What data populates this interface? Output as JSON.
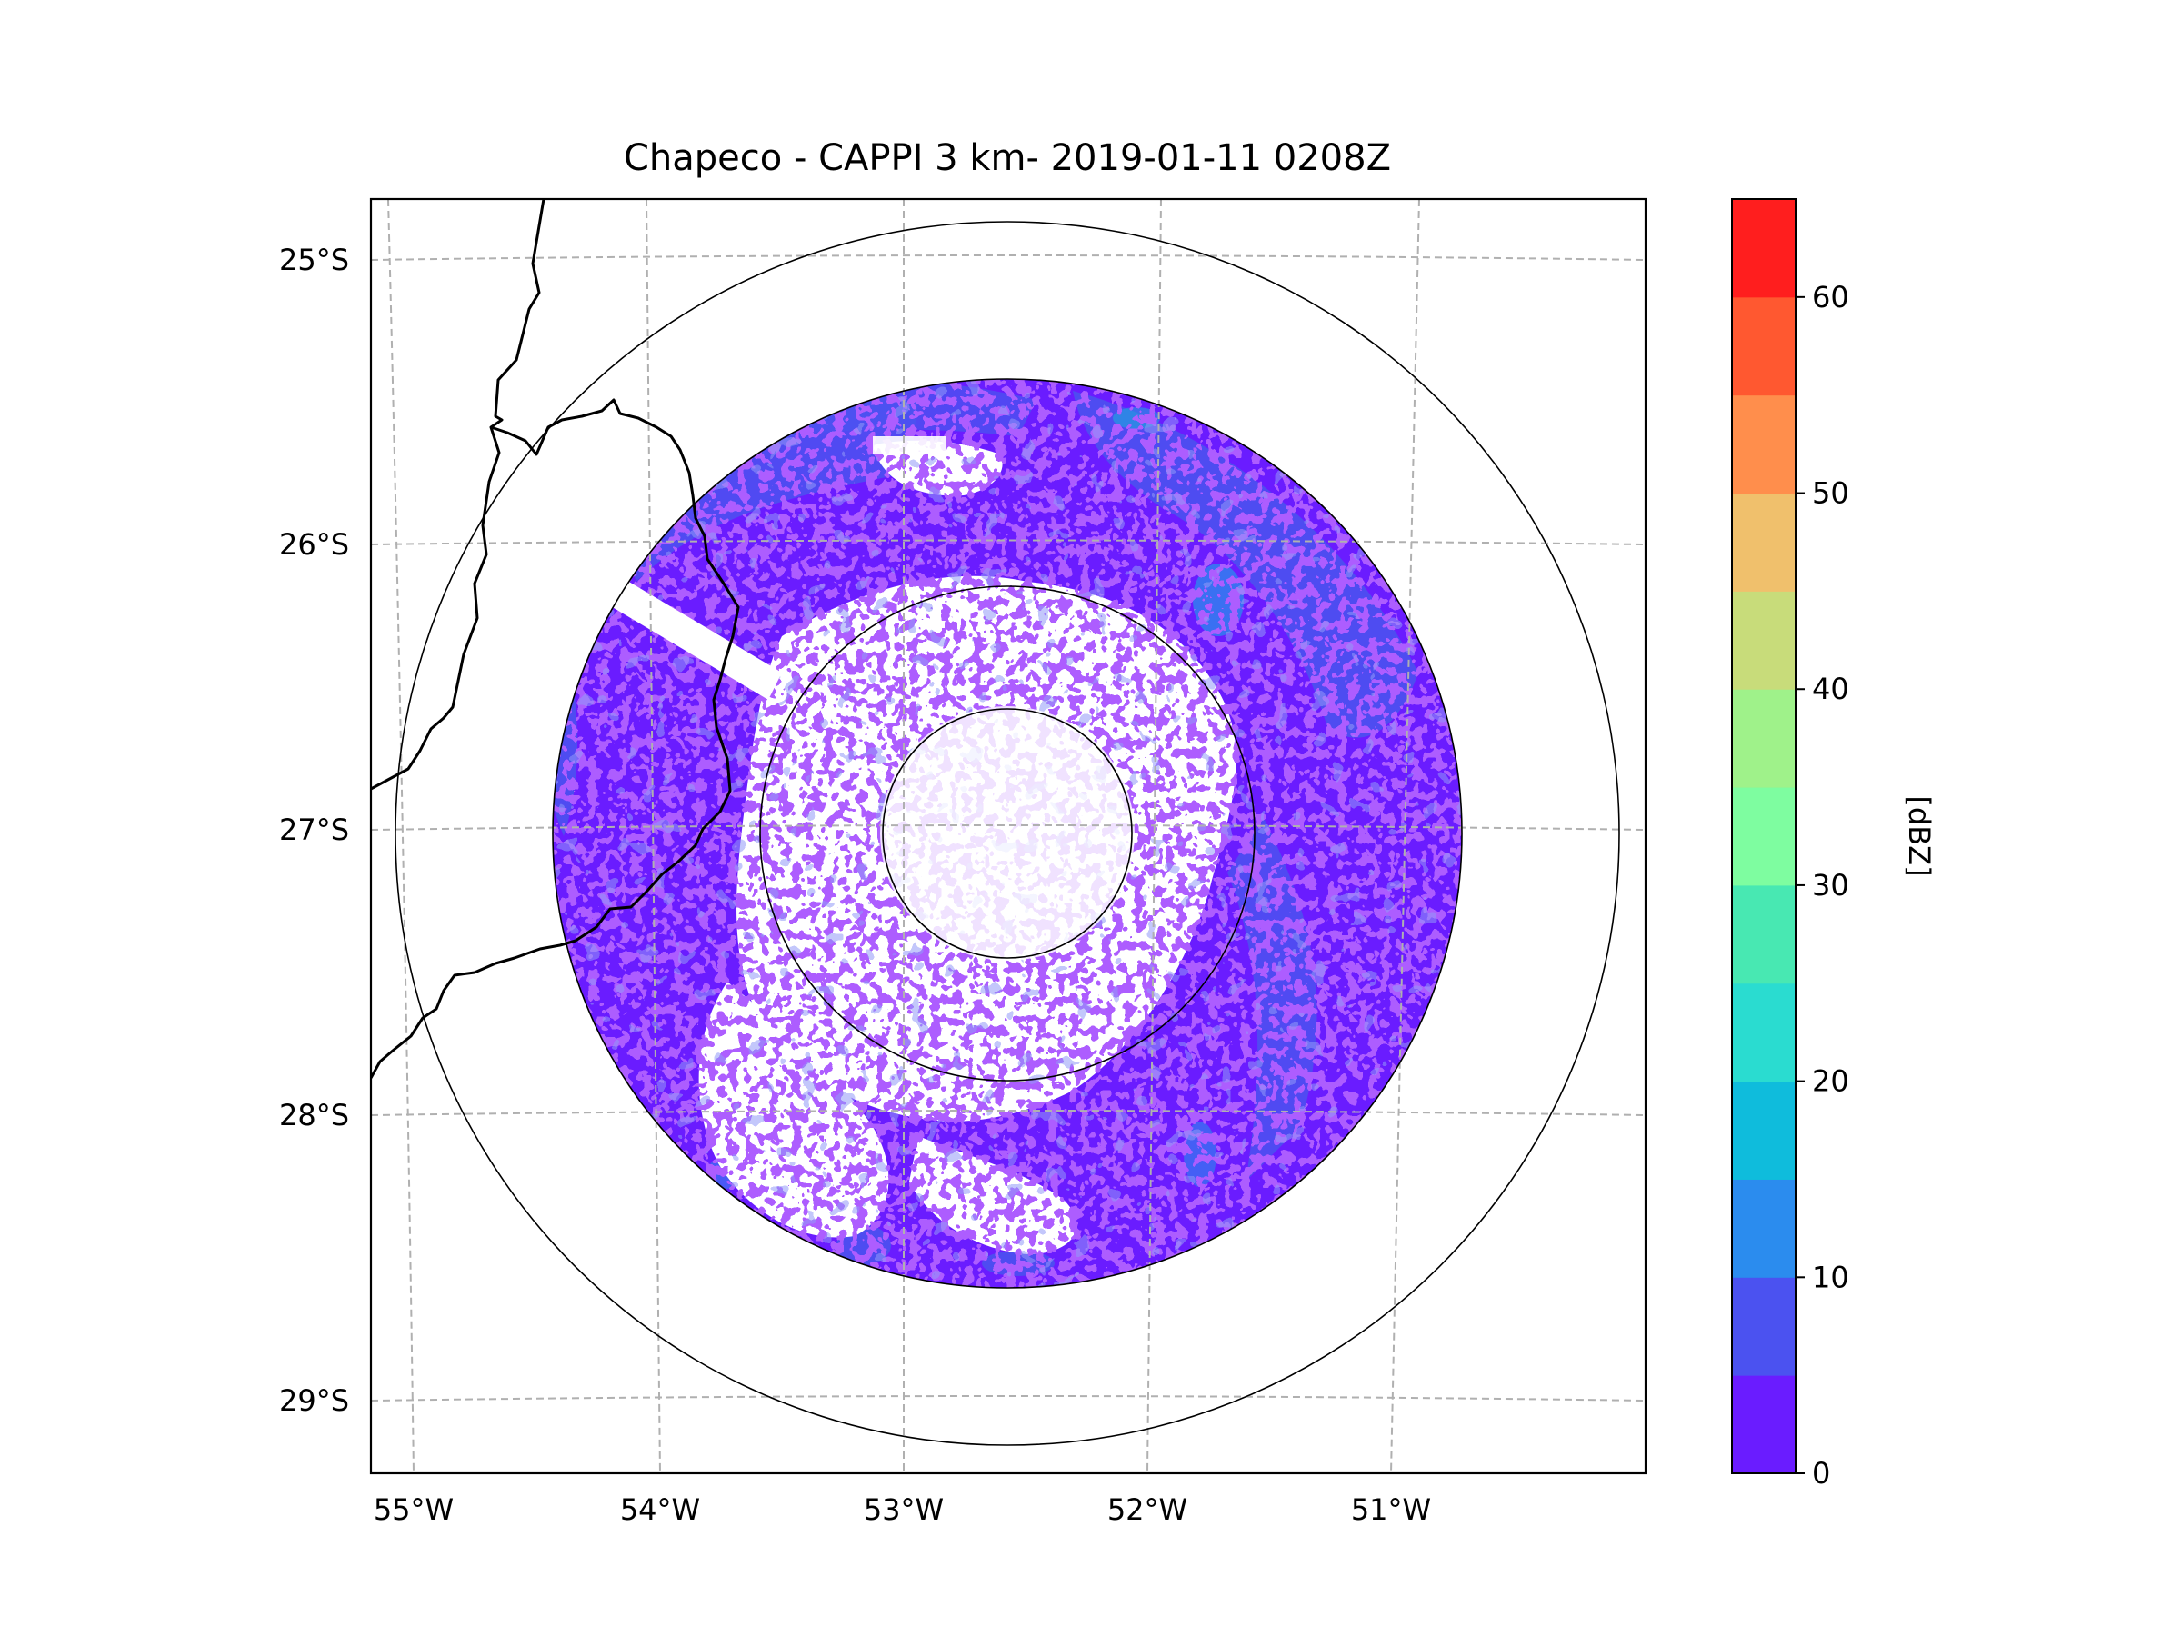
{
  "title": "Chapeco - CAPPI 3 km- 2019-01-11 0208Z",
  "radar": {
    "site": "Chapeco",
    "product": "CAPPI",
    "height_km": 3,
    "datetime": "2019-01-11 0208Z",
    "center_lon": -52.6,
    "center_lat": -27.02,
    "range_rings_km": [
      50,
      100,
      200,
      250
    ]
  },
  "map": {
    "lon_range": [
      -55.2,
      -50.1
    ],
    "lat_range": [
      -29.3,
      -24.8
    ],
    "lon_ticks": [
      {
        "value": -55,
        "label": "55°W"
      },
      {
        "value": -54,
        "label": "54°W"
      },
      {
        "value": -53,
        "label": "53°W"
      },
      {
        "value": -52,
        "label": "52°W"
      },
      {
        "value": -51,
        "label": "51°W"
      }
    ],
    "lat_ticks": [
      {
        "value": -25,
        "label": "25°S"
      },
      {
        "value": -26,
        "label": "26°S"
      },
      {
        "value": -27,
        "label": "27°S"
      },
      {
        "value": -28,
        "label": "28°S"
      },
      {
        "value": -29,
        "label": "29°S"
      }
    ],
    "gridlines": "dashed"
  },
  "colorbar": {
    "label": "[dBZ]",
    "min": 0,
    "max": 65,
    "bounds": [
      0,
      5,
      10,
      15,
      20,
      25,
      30,
      35,
      40,
      45,
      50,
      55,
      60,
      65
    ],
    "colors": [
      "#6a1cff",
      "#4b52f0",
      "#2b8cee",
      "#0fbcdc",
      "#2adcd0",
      "#48e8b2",
      "#7efda0",
      "#9ff28a",
      "#c8dc7a",
      "#f0c06c",
      "#ff8e4c",
      "#ff5830",
      "#ff1e1e"
    ],
    "tick_values": [
      0,
      10,
      20,
      30,
      40,
      50,
      60
    ],
    "tick_labels": [
      "0",
      "10",
      "20",
      "30",
      "40",
      "50",
      "60"
    ]
  }
}
